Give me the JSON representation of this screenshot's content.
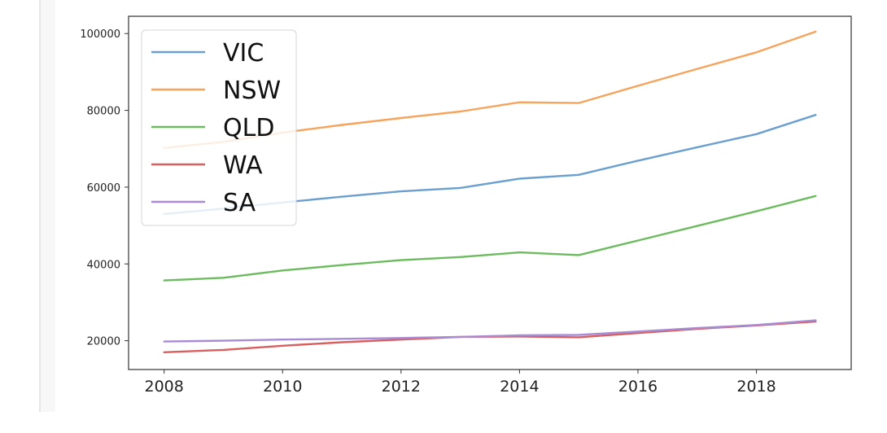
{
  "chart_data": {
    "type": "line",
    "title": "",
    "xlabel": "",
    "ylabel": "",
    "x": [
      2008,
      2009,
      2010,
      2011,
      2012,
      2013,
      2014,
      2015,
      2016,
      2017,
      2018,
      2019
    ],
    "xlim": [
      2007.4,
      2019.6
    ],
    "ylim": [
      12500,
      104500
    ],
    "xticks": [
      2008,
      2010,
      2012,
      2014,
      2016,
      2018
    ],
    "yticks": [
      20000,
      40000,
      60000,
      80000,
      100000
    ],
    "grid": false,
    "legend_position": "top-left",
    "series": [
      {
        "name": "VIC",
        "color": "#6a9fcf",
        "values": [
          53000,
          54400,
          56000,
          57500,
          58900,
          59800,
          62200,
          63200,
          66900,
          70400,
          73800,
          78800
        ]
      },
      {
        "name": "NSW",
        "color": "#f7a35c",
        "values": [
          70200,
          71800,
          74200,
          76200,
          78000,
          79700,
          82100,
          81900,
          86400,
          90800,
          95100,
          100500
        ]
      },
      {
        "name": "QLD",
        "color": "#6cbb5e",
        "values": [
          35700,
          36400,
          38300,
          39700,
          41000,
          41800,
          43000,
          42300,
          46100,
          49900,
          53700,
          57700
        ]
      },
      {
        "name": "WA",
        "color": "#d95f5f",
        "values": [
          17000,
          17600,
          18700,
          19600,
          20300,
          21000,
          21100,
          20900,
          22000,
          23100,
          24000,
          25000
        ]
      },
      {
        "name": "SA",
        "color": "#a98bd4",
        "values": [
          19800,
          20000,
          20300,
          20500,
          20700,
          21000,
          21400,
          21500,
          22400,
          23300,
          24100,
          25300
        ]
      }
    ]
  }
}
